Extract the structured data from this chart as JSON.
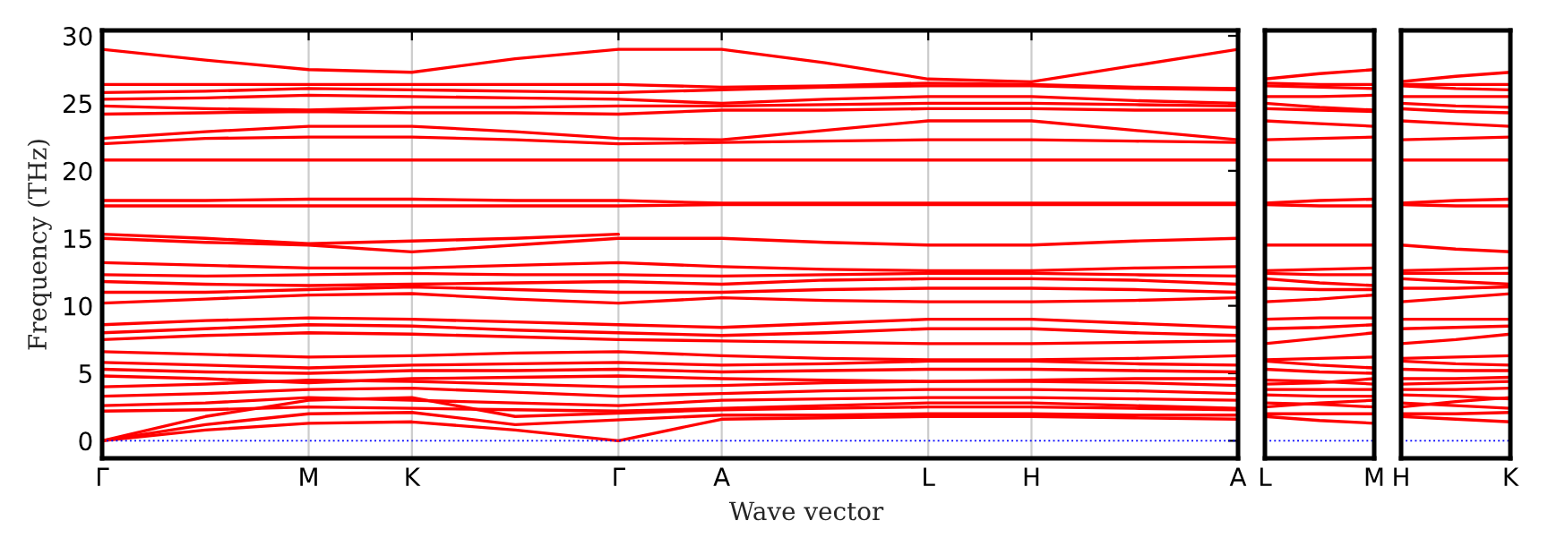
{
  "chart_data": [
    {
      "type": "line",
      "ylabel": "Frequency (THz)",
      "xlabel": "Wave vector",
      "ylim": [
        -1.3,
        30.4
      ],
      "yticks": [
        0,
        5,
        10,
        15,
        20,
        25,
        30
      ],
      "categories": [
        "Γ",
        null,
        "M",
        "K",
        null,
        "Γ",
        "A",
        null,
        "L",
        "H",
        null,
        "A"
      ],
      "grid": "x",
      "line_style": "solid",
      "marker": "none",
      "ref_lines": [
        {
          "axis": "y",
          "value": 0,
          "color": "#0000ff",
          "line_style": "dotted"
        }
      ],
      "series": [
        {
          "color": "#ff0000",
          "values": [
            0,
            0.8,
            1.3,
            1.4,
            0.8,
            0,
            1.6,
            1.7,
            1.8,
            1.8,
            1.7,
            1.6
          ]
        },
        {
          "color": "#ff0000",
          "values": [
            0,
            1.2,
            2.0,
            2.1,
            1.2,
            null,
            1.9,
            1.9,
            2.0,
            2.0,
            1.9,
            1.9
          ]
        },
        {
          "color": "#ff0000",
          "values": [
            0,
            1.8,
            3.0,
            3.2,
            1.8,
            null,
            2.3,
            2.4,
            2.5,
            2.5,
            2.4,
            2.3
          ]
        },
        {
          "color": "#ff0000",
          "values": [
            2.2,
            2.3,
            2.5,
            2.4,
            2.3,
            2.2,
            2.4,
            2.6,
            2.8,
            2.8,
            2.6,
            2.4
          ]
        },
        {
          "color": "#ff0000",
          "values": [
            2.6,
            2.8,
            3.2,
            3.0,
            2.8,
            2.6,
            3.0,
            3.1,
            3.2,
            3.2,
            3.1,
            3.0
          ]
        },
        {
          "color": "#ff0000",
          "values": [
            3.3,
            3.5,
            3.8,
            3.9,
            3.6,
            3.3,
            3.5,
            3.7,
            3.8,
            3.8,
            3.7,
            3.5
          ]
        },
        {
          "color": "#ff0000",
          "values": [
            4.0,
            4.2,
            4.5,
            4.4,
            4.2,
            4.0,
            4.1,
            4.3,
            4.4,
            4.4,
            4.3,
            4.1
          ]
        },
        {
          "color": "#ff0000",
          "values": [
            4.8,
            4.6,
            4.3,
            4.6,
            4.7,
            4.8,
            4.6,
            4.5,
            4.4,
            4.5,
            4.6,
            4.6
          ]
        },
        {
          "color": "#ff0000",
          "values": [
            5.3,
            5.1,
            5.0,
            5.2,
            5.2,
            5.3,
            5.1,
            5.2,
            5.3,
            5.3,
            5.2,
            5.1
          ]
        },
        {
          "color": "#ff0000",
          "values": [
            5.8,
            5.6,
            5.4,
            5.6,
            5.7,
            5.8,
            5.6,
            5.7,
            5.9,
            5.9,
            5.7,
            5.6
          ]
        },
        {
          "color": "#ff0000",
          "values": [
            6.6,
            6.4,
            6.2,
            6.3,
            6.5,
            6.6,
            6.3,
            6.1,
            6.0,
            6.0,
            6.1,
            6.3
          ]
        },
        {
          "color": "#ff0000",
          "values": [
            7.5,
            7.8,
            8.0,
            7.9,
            7.7,
            7.5,
            7.4,
            7.3,
            7.2,
            7.2,
            7.3,
            7.4
          ]
        },
        {
          "color": "#ff0000",
          "values": [
            8.0,
            8.3,
            8.6,
            8.5,
            8.2,
            8.0,
            7.8,
            8.0,
            8.3,
            8.3,
            8.0,
            7.8
          ]
        },
        {
          "color": "#ff0000",
          "values": [
            8.6,
            8.9,
            9.1,
            9.0,
            8.8,
            8.6,
            8.4,
            8.7,
            9.0,
            9.0,
            8.7,
            8.4
          ]
        },
        {
          "color": "#ff0000",
          "values": [
            10.2,
            10.5,
            10.8,
            10.9,
            10.5,
            10.2,
            10.6,
            10.4,
            10.3,
            10.3,
            10.4,
            10.6
          ]
        },
        {
          "color": "#ff0000",
          "values": [
            11.0,
            11.0,
            11.2,
            11.4,
            11.2,
            11.0,
            11.0,
            11.2,
            11.3,
            11.3,
            11.2,
            11.0
          ]
        },
        {
          "color": "#ff0000",
          "values": [
            11.8,
            11.6,
            11.5,
            11.6,
            11.7,
            11.8,
            11.6,
            11.9,
            12.0,
            12.0,
            11.9,
            11.6
          ]
        },
        {
          "color": "#ff0000",
          "values": [
            12.3,
            12.2,
            12.3,
            12.4,
            12.3,
            12.3,
            12.2,
            12.3,
            12.4,
            12.4,
            12.3,
            12.2
          ]
        },
        {
          "color": "#ff0000",
          "values": [
            13.2,
            13.0,
            12.8,
            12.8,
            13.0,
            13.2,
            12.9,
            12.7,
            12.6,
            12.6,
            12.8,
            12.9
          ]
        },
        {
          "color": "#ff0000",
          "values": [
            15.0,
            14.7,
            14.5,
            14.0,
            14.5,
            15.0,
            15.0,
            14.7,
            14.5,
            14.5,
            14.8,
            15.0
          ]
        },
        {
          "color": "#ff0000",
          "values": [
            15.3,
            15.0,
            14.6,
            14.8,
            15.0,
            15.3,
            null,
            null,
            null,
            null,
            null,
            null
          ]
        },
        {
          "color": "#ff0000",
          "values": [
            17.4,
            17.4,
            17.4,
            17.4,
            17.4,
            17.4,
            17.5,
            17.5,
            17.5,
            17.5,
            17.5,
            17.5
          ]
        },
        {
          "color": "#ff0000",
          "values": [
            17.8,
            17.8,
            17.9,
            17.9,
            17.8,
            17.8,
            17.6,
            17.6,
            17.6,
            17.6,
            17.6,
            17.6
          ]
        },
        {
          "color": "#ff0000",
          "values": [
            20.8,
            20.8,
            20.8,
            20.8,
            20.8,
            20.8,
            20.8,
            20.8,
            20.8,
            20.8,
            20.8,
            20.8
          ]
        },
        {
          "color": "#ff0000",
          "values": [
            22.0,
            22.4,
            22.5,
            22.5,
            22.3,
            22.0,
            22.1,
            22.2,
            22.3,
            22.3,
            22.2,
            22.1
          ]
        },
        {
          "color": "#ff0000",
          "values": [
            22.4,
            22.9,
            23.3,
            23.3,
            22.9,
            22.4,
            22.3,
            23.0,
            23.7,
            23.7,
            23.0,
            22.3
          ]
        },
        {
          "color": "#ff0000",
          "values": [
            24.2,
            24.3,
            24.4,
            24.3,
            24.3,
            24.2,
            24.5,
            24.5,
            24.6,
            24.6,
            24.5,
            24.5
          ]
        },
        {
          "color": "#ff0000",
          "values": [
            24.8,
            24.6,
            24.5,
            24.7,
            24.7,
            24.8,
            24.8,
            24.9,
            25.0,
            25.0,
            24.9,
            24.8
          ]
        },
        {
          "color": "#ff0000",
          "values": [
            25.3,
            25.4,
            25.6,
            25.5,
            25.4,
            25.3,
            25.0,
            25.3,
            25.5,
            25.5,
            25.2,
            25.0
          ]
        },
        {
          "color": "#ff0000",
          "values": [
            25.8,
            25.9,
            26.1,
            26.0,
            25.9,
            25.8,
            26.0,
            26.2,
            26.3,
            26.3,
            26.1,
            26.0
          ]
        },
        {
          "color": "#ff0000",
          "values": [
            26.4,
            26.4,
            26.4,
            26.4,
            26.4,
            26.4,
            26.2,
            26.3,
            26.5,
            26.4,
            26.2,
            26.1
          ]
        },
        {
          "color": "#ff0000",
          "values": [
            29.0,
            28.2,
            27.5,
            27.3,
            28.3,
            29.0,
            29.0,
            28.0,
            26.8,
            26.6,
            27.8,
            29.0
          ]
        }
      ]
    },
    {
      "type": "line",
      "ylim": [
        -1.3,
        30.4
      ],
      "categories": [
        "L",
        null,
        "M"
      ],
      "tick_labels": "x",
      "line_style": "solid",
      "marker": "none",
      "ref_lines": [
        {
          "axis": "y",
          "value": 0,
          "color": "#0000ff",
          "line_style": "dotted"
        }
      ],
      "series": [
        {
          "color": "#ff0000",
          "values": [
            1.8,
            1.5,
            1.3
          ]
        },
        {
          "color": "#ff0000",
          "values": [
            2.0,
            2.0,
            2.0
          ]
        },
        {
          "color": "#ff0000",
          "values": [
            2.5,
            2.8,
            3.0
          ]
        },
        {
          "color": "#ff0000",
          "values": [
            2.8,
            2.7,
            2.5
          ]
        },
        {
          "color": "#ff0000",
          "values": [
            3.4,
            3.3,
            3.3
          ]
        },
        {
          "color": "#ff0000",
          "values": [
            3.8,
            3.8,
            3.8
          ]
        },
        {
          "color": "#ff0000",
          "values": [
            4.2,
            4.3,
            4.6
          ]
        },
        {
          "color": "#ff0000",
          "values": [
            4.5,
            4.4,
            4.2
          ]
        },
        {
          "color": "#ff0000",
          "values": [
            5.3,
            5.1,
            5.0
          ]
        },
        {
          "color": "#ff0000",
          "values": [
            5.9,
            5.6,
            5.4
          ]
        },
        {
          "color": "#ff0000",
          "values": [
            6.0,
            6.1,
            6.2
          ]
        },
        {
          "color": "#ff0000",
          "values": [
            7.2,
            7.6,
            8.0
          ]
        },
        {
          "color": "#ff0000",
          "values": [
            8.3,
            8.4,
            8.6
          ]
        },
        {
          "color": "#ff0000",
          "values": [
            9.0,
            9.1,
            9.1
          ]
        },
        {
          "color": "#ff0000",
          "values": [
            10.3,
            10.5,
            10.8
          ]
        },
        {
          "color": "#ff0000",
          "values": [
            11.3,
            11.2,
            11.2
          ]
        },
        {
          "color": "#ff0000",
          "values": [
            12.0,
            11.7,
            11.5
          ]
        },
        {
          "color": "#ff0000",
          "values": [
            12.4,
            12.3,
            12.3
          ]
        },
        {
          "color": "#ff0000",
          "values": [
            12.6,
            12.7,
            12.8
          ]
        },
        {
          "color": "#ff0000",
          "values": [
            14.5,
            14.5,
            14.5
          ]
        },
        {
          "color": "#ff0000",
          "values": [
            17.5,
            17.4,
            17.4
          ]
        },
        {
          "color": "#ff0000",
          "values": [
            17.6,
            17.8,
            17.9
          ]
        },
        {
          "color": "#ff0000",
          "values": [
            20.8,
            20.8,
            20.8
          ]
        },
        {
          "color": "#ff0000",
          "values": [
            22.3,
            22.4,
            22.5
          ]
        },
        {
          "color": "#ff0000",
          "values": [
            23.7,
            23.5,
            23.3
          ]
        },
        {
          "color": "#ff0000",
          "values": [
            24.6,
            24.5,
            24.4
          ]
        },
        {
          "color": "#ff0000",
          "values": [
            25.0,
            24.7,
            24.5
          ]
        },
        {
          "color": "#ff0000",
          "values": [
            25.5,
            25.5,
            25.6
          ]
        },
        {
          "color": "#ff0000",
          "values": [
            26.3,
            26.2,
            26.1
          ]
        },
        {
          "color": "#ff0000",
          "values": [
            26.5,
            26.4,
            26.4
          ]
        },
        {
          "color": "#ff0000",
          "values": [
            26.8,
            27.2,
            27.5
          ]
        }
      ]
    },
    {
      "type": "line",
      "ylim": [
        -1.3,
        30.4
      ],
      "categories": [
        "H",
        null,
        "K"
      ],
      "tick_labels": "x",
      "line_style": "solid",
      "marker": "none",
      "ref_lines": [
        {
          "axis": "y",
          "value": 0,
          "color": "#0000ff",
          "line_style": "dotted"
        }
      ],
      "series": [
        {
          "color": "#ff0000",
          "values": [
            1.8,
            1.6,
            1.4
          ]
        },
        {
          "color": "#ff0000",
          "values": [
            2.0,
            2.0,
            2.1
          ]
        },
        {
          "color": "#ff0000",
          "values": [
            2.5,
            2.9,
            3.2
          ]
        },
        {
          "color": "#ff0000",
          "values": [
            2.8,
            2.6,
            2.4
          ]
        },
        {
          "color": "#ff0000",
          "values": [
            3.4,
            3.3,
            3.1
          ]
        },
        {
          "color": "#ff0000",
          "values": [
            3.8,
            3.8,
            3.9
          ]
        },
        {
          "color": "#ff0000",
          "values": [
            4.2,
            4.3,
            4.4
          ]
        },
        {
          "color": "#ff0000",
          "values": [
            4.6,
            4.6,
            4.7
          ]
        },
        {
          "color": "#ff0000",
          "values": [
            5.3,
            5.2,
            5.2
          ]
        },
        {
          "color": "#ff0000",
          "values": [
            5.9,
            5.7,
            5.6
          ]
        },
        {
          "color": "#ff0000",
          "values": [
            6.1,
            6.2,
            6.3
          ]
        },
        {
          "color": "#ff0000",
          "values": [
            7.2,
            7.5,
            7.9
          ]
        },
        {
          "color": "#ff0000",
          "values": [
            8.3,
            8.4,
            8.5
          ]
        },
        {
          "color": "#ff0000",
          "values": [
            9.0,
            9.0,
            9.0
          ]
        },
        {
          "color": "#ff0000",
          "values": [
            10.3,
            10.6,
            10.9
          ]
        },
        {
          "color": "#ff0000",
          "values": [
            11.3,
            11.3,
            11.4
          ]
        },
        {
          "color": "#ff0000",
          "values": [
            12.0,
            11.8,
            11.6
          ]
        },
        {
          "color": "#ff0000",
          "values": [
            12.4,
            12.4,
            12.4
          ]
        },
        {
          "color": "#ff0000",
          "values": [
            12.6,
            12.7,
            12.8
          ]
        },
        {
          "color": "#ff0000",
          "values": [
            14.5,
            14.2,
            14.0
          ]
        },
        {
          "color": "#ff0000",
          "values": [
            17.5,
            17.4,
            17.4
          ]
        },
        {
          "color": "#ff0000",
          "values": [
            17.6,
            17.8,
            17.9
          ]
        },
        {
          "color": "#ff0000",
          "values": [
            20.8,
            20.8,
            20.8
          ]
        },
        {
          "color": "#ff0000",
          "values": [
            22.3,
            22.4,
            22.5
          ]
        },
        {
          "color": "#ff0000",
          "values": [
            23.7,
            23.5,
            23.3
          ]
        },
        {
          "color": "#ff0000",
          "values": [
            24.6,
            24.4,
            24.3
          ]
        },
        {
          "color": "#ff0000",
          "values": [
            25.0,
            24.8,
            24.7
          ]
        },
        {
          "color": "#ff0000",
          "values": [
            25.5,
            25.5,
            25.5
          ]
        },
        {
          "color": "#ff0000",
          "values": [
            26.3,
            26.1,
            26.0
          ]
        },
        {
          "color": "#ff0000",
          "values": [
            26.4,
            26.4,
            26.4
          ]
        },
        {
          "color": "#ff0000",
          "values": [
            26.6,
            27.0,
            27.3
          ]
        }
      ]
    }
  ]
}
